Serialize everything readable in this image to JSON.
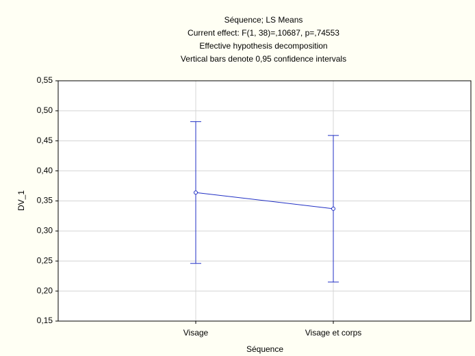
{
  "chart_data": {
    "type": "line",
    "title_lines": [
      "Séquence; LS Means",
      "Current effect: F(1, 38)=,10687, p=,74553",
      "Effective hypothesis decomposition",
      "Vertical bars denote 0,95 confidence intervals"
    ],
    "x_label": "Séquence",
    "y_label": "DV_1",
    "categories": [
      "Visage",
      "Visage et corps"
    ],
    "values": [
      0.364,
      0.337
    ],
    "errors": [
      0.118,
      0.122
    ],
    "color": "#1f2ec4",
    "ylim": [
      0.15,
      0.55
    ],
    "yticks": [
      {
        "value": 0.15,
        "label": "0,15"
      },
      {
        "value": 0.2,
        "label": "0,20"
      },
      {
        "value": 0.25,
        "label": "0,25"
      },
      {
        "value": 0.3,
        "label": "0,30"
      },
      {
        "value": 0.35,
        "label": "0,35"
      },
      {
        "value": 0.4,
        "label": "0,40"
      },
      {
        "value": 0.45,
        "label": "0,45"
      },
      {
        "value": 0.5,
        "label": "0,50"
      },
      {
        "value": 0.55,
        "label": "0,55"
      }
    ],
    "grid": true
  }
}
